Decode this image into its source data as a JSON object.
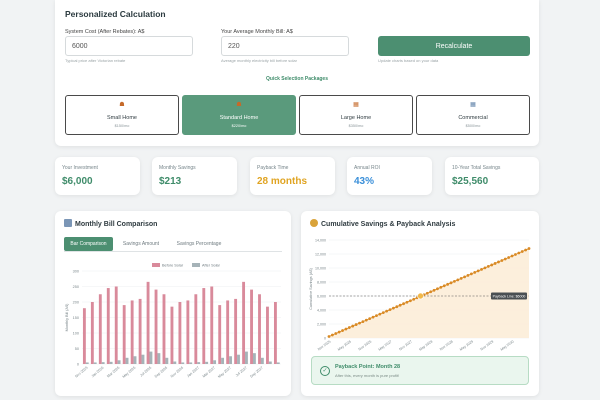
{
  "calculator": {
    "title": "Personalized Calculation",
    "system_cost": {
      "label": "System Cost (After Rebates): A$",
      "value": "6000",
      "hint": "Typical price after Victorian rebate"
    },
    "monthly_bill": {
      "label": "Your Average Monthly Bill: A$",
      "value": "220",
      "hint": "Average monthly electricity bill before solar"
    },
    "recalculate": {
      "label": "Recalculate",
      "hint": "Update charts based on your data"
    },
    "quick_selection_label": "Quick Selection Packages",
    "packages": [
      {
        "name": "Small Home",
        "price": "$150/mo",
        "icon": "house-icon"
      },
      {
        "name": "Standard Home",
        "price": "$220/mo",
        "icon": "house-icon"
      },
      {
        "name": "Large Home",
        "price": "$350/mo",
        "icon": "building-icon"
      },
      {
        "name": "Commercial",
        "price": "$500/mo",
        "icon": "office-icon"
      }
    ],
    "active_package": 1
  },
  "stats": [
    {
      "label": "Your Investment",
      "value": "$6,000",
      "color": "#3f8c6a"
    },
    {
      "label": "Monthly Savings",
      "value": "$213",
      "color": "#3f8c6a"
    },
    {
      "label": "Payback Time",
      "value": "28 months",
      "color": "#e0a422"
    },
    {
      "label": "Annual ROI",
      "value": "43%",
      "color": "#3a8fd9"
    },
    {
      "label": "10-Year Total Savings",
      "value": "$25,560",
      "color": "#3f8c6a"
    }
  ],
  "monthly_chart": {
    "title": "Monthly Bill Comparison",
    "icon": "bar-chart-icon",
    "tabs": [
      "Bar Comparison",
      "Savings Amount",
      "Savings Percentage"
    ],
    "active_tab": 0
  },
  "cumulative_chart": {
    "title": "Cumulative Savings & Payback Analysis",
    "icon": "money-bag-icon",
    "payback_title": "Payback Point: Month 28",
    "payback_text": "After this, every month is pure profit!"
  },
  "chart_data": [
    {
      "type": "bar",
      "ylabel": "Monthly Bill (A$)",
      "ylim": [
        0,
        300
      ],
      "yticks": [
        0,
        50,
        100,
        150,
        200,
        250,
        300
      ],
      "categories": [
        "Nov 2025",
        "Dec 2025",
        "Jan 2026",
        "Feb 2026",
        "Mar 2026",
        "Apr 2026",
        "May 2026",
        "Jun 2026",
        "Jul 2026",
        "Aug 2026",
        "Sep 2026",
        "Oct 2026",
        "Nov 2026",
        "Dec 2026",
        "Jan 2027",
        "Feb 2027",
        "Mar 2027",
        "Apr 2027",
        "May 2027",
        "Jun 2027",
        "Jul 2027",
        "Aug 2027",
        "Sep 2027",
        "Oct 2027",
        "Nov 2027"
      ],
      "xticklabels": [
        "Nov 2025",
        "Jan 2026",
        "Mar 2026",
        "May 2026",
        "Jul 2026",
        "Sep 2026",
        "Nov 2026",
        "Jan 2027",
        "Mar 2027",
        "May 2027",
        "Jul 2027",
        "Sep 2027"
      ],
      "legend_position": "top",
      "series": [
        {
          "name": "Before Solar",
          "color": "#d98a9b",
          "values": [
            180,
            200,
            225,
            245,
            250,
            190,
            205,
            210,
            265,
            240,
            225,
            185,
            200,
            205,
            225,
            245,
            250,
            190,
            205,
            210,
            265,
            240,
            225,
            185,
            200
          ]
        },
        {
          "name": "After Solar",
          "color": "#a6b3b8",
          "values": [
            5,
            5,
            6,
            7,
            12,
            20,
            25,
            30,
            40,
            35,
            20,
            8,
            5,
            5,
            6,
            7,
            12,
            20,
            25,
            30,
            40,
            35,
            20,
            8,
            5
          ]
        }
      ]
    },
    {
      "type": "line",
      "ylabel": "Cumulative Savings (A$)",
      "ylim": [
        0,
        14000
      ],
      "yticks": [
        0,
        2000,
        4000,
        6000,
        8000,
        10000,
        12000,
        14000
      ],
      "x_range_months": [
        1,
        60
      ],
      "xticklabels": [
        "Nov 2025",
        "May 2026",
        "Nov 2026",
        "May 2027",
        "Nov 2027",
        "May 2028",
        "Nov 2028",
        "May 2029",
        "Nov 2029",
        "May 2030"
      ],
      "series": [
        {
          "name": "Cumulative Savings",
          "color": "#d98a25",
          "start": 213,
          "monthly_increment": 213,
          "months": 60
        }
      ],
      "reference_line": {
        "label": "Payback Line: $6000",
        "value": 6000
      },
      "highlight_point": {
        "month": 28,
        "value": 6000
      }
    }
  ]
}
